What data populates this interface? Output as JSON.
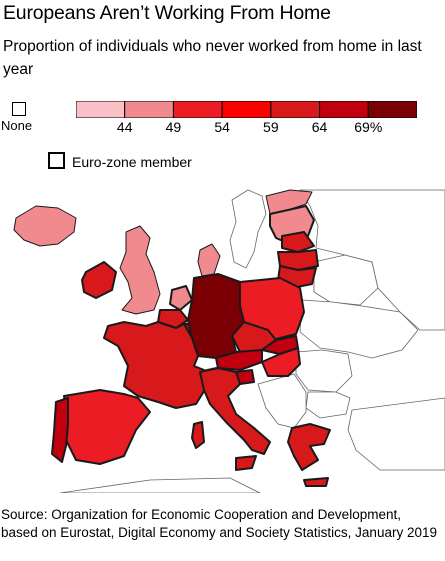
{
  "title": "Europeans Aren’t Working From Home",
  "subtitle": "Proportion of individuals who never worked from home in last year",
  "legend": {
    "none_label": "None",
    "scale": {
      "colors": [
        "#f9c1c6",
        "#f08a8f",
        "#ec1c24",
        "#fa0000",
        "#d7191c",
        "#c0000f",
        "#7a0006"
      ],
      "ticks": [
        "44",
        "49",
        "54",
        "59",
        "64",
        "69%"
      ]
    },
    "eurozone_label": "Euro-zone member"
  },
  "map": {
    "colors": {
      "dark": "#7a0006",
      "deep": "#c0000f",
      "red": "#d7191c",
      "bright": "#ec1c24",
      "pink": "#f08a8f",
      "land": "#ffffff",
      "border": "#1a1a1a"
    },
    "regions": [
      {
        "name": "iceland",
        "color": "#f08a8f",
        "eurozone": false
      },
      {
        "name": "norway",
        "color": "#f08a8f",
        "eurozone": false
      },
      {
        "name": "finland",
        "color": "#f08a8f",
        "eurozone": true
      },
      {
        "name": "estonia",
        "color": "#d7191c",
        "eurozone": true
      },
      {
        "name": "latvia",
        "color": "#d7191c",
        "eurozone": true
      },
      {
        "name": "lithuania",
        "color": "#d7191c",
        "eurozone": true
      },
      {
        "name": "united-kingdom",
        "color": "#f08a8f",
        "eurozone": false
      },
      {
        "name": "ireland",
        "color": "#d7191c",
        "eurozone": true
      },
      {
        "name": "netherlands",
        "color": "#f08a8f",
        "eurozone": true
      },
      {
        "name": "belgium",
        "color": "#d7191c",
        "eurozone": true
      },
      {
        "name": "luxembourg",
        "color": "#c0000f",
        "eurozone": true
      },
      {
        "name": "germany",
        "color": "#7a0006",
        "eurozone": true
      },
      {
        "name": "denmark",
        "color": "#f08a8f",
        "eurozone": false
      },
      {
        "name": "poland",
        "color": "#ec1c24",
        "eurozone": false
      },
      {
        "name": "czech-republic",
        "color": "#d7191c",
        "eurozone": false
      },
      {
        "name": "slovakia",
        "color": "#c0000f",
        "eurozone": true
      },
      {
        "name": "austria",
        "color": "#c0000f",
        "eurozone": true
      },
      {
        "name": "hungary",
        "color": "#ec1c24",
        "eurozone": false
      },
      {
        "name": "slovenia",
        "color": "#c0000f",
        "eurozone": true
      },
      {
        "name": "france",
        "color": "#d7191c",
        "eurozone": true
      },
      {
        "name": "spain",
        "color": "#ec1c24",
        "eurozone": true
      },
      {
        "name": "portugal",
        "color": "#c0000f",
        "eurozone": true
      },
      {
        "name": "italy",
        "color": "#d7191c",
        "eurozone": true
      },
      {
        "name": "greece",
        "color": "#d7191c",
        "eurozone": true
      }
    ]
  },
  "source": "Source: Organization for Economic Cooperation and Development, based on Eurostat, Digital Economy and Society Statistics, January 2019"
}
